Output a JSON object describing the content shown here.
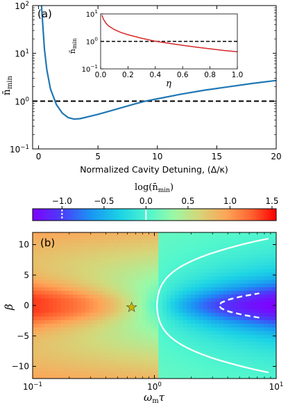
{
  "chart_data": [
    {
      "panel": "(a)",
      "type": "line",
      "xlabel": "Normalized Cavity Detuning, (Δ/κ)",
      "ylabel": "n̄min",
      "yscale": "log",
      "xlim": [
        -0.5,
        20
      ],
      "ylim": [
        0.1,
        100
      ],
      "xticks": [
        "0",
        "5",
        "10",
        "15",
        "20"
      ],
      "yticks": [
        "10⁻¹",
        "10⁰",
        "10¹",
        "10²"
      ],
      "series": [
        {
          "color": "#1f77b4",
          "x": [
            0.25,
            0.35,
            0.5,
            0.7,
            1.0,
            1.5,
            2.0,
            2.5,
            3.0,
            3.5,
            4.0,
            5.0,
            6.0,
            7.0,
            8.0,
            9.0,
            10.0,
            12.0,
            14.0,
            16.0,
            18.0,
            20.0
          ],
          "y": [
            100,
            40,
            12,
            4.5,
            1.8,
            0.85,
            0.56,
            0.45,
            0.42,
            0.43,
            0.46,
            0.53,
            0.62,
            0.73,
            0.86,
            1.0,
            1.12,
            1.4,
            1.7,
            2.0,
            2.35,
            2.7
          ]
        }
      ],
      "reference_line": {
        "y": 1,
        "style": "dashed",
        "color": "#000000"
      },
      "inset": {
        "type": "line",
        "xlabel": "η",
        "ylabel": "n̄min",
        "yscale": "log",
        "xlim": [
          0,
          1
        ],
        "ylim": [
          0.1,
          10
        ],
        "xticks": [
          "0.0",
          "0.2",
          "0.4",
          "0.6",
          "0.8",
          "1.0"
        ],
        "yticks": [
          "10⁻¹",
          "10⁰",
          "10¹"
        ],
        "series": [
          {
            "color": "#d62728",
            "x": [
              0.01,
              0.02,
              0.04,
              0.06,
              0.1,
              0.15,
              0.2,
              0.3,
              0.4,
              0.5,
              0.6,
              0.7,
              0.8,
              0.9,
              1.0
            ],
            "y": [
              9,
              6.5,
              4.5,
              3.6,
              2.7,
              2.1,
              1.75,
              1.3,
              1.02,
              0.85,
              0.72,
              0.62,
              0.54,
              0.47,
              0.42
            ]
          }
        ],
        "reference_line": {
          "y": 1,
          "style": "dashed",
          "color": "#000000"
        }
      }
    },
    {
      "panel": "(b)",
      "type": "heatmap",
      "xlabel": "ωmτ",
      "ylabel": "β",
      "xscale": "log",
      "xlim": [
        0.1,
        10
      ],
      "ylim": [
        -12,
        12
      ],
      "xticks": [
        "10⁻¹",
        "10⁰",
        "10¹"
      ],
      "yticks": [
        "−10",
        "−5",
        "0",
        "5",
        "10"
      ],
      "colorbar": {
        "label": "log(n̄min)",
        "range": [
          -1.35,
          1.55
        ],
        "ticks": [
          "−1.0",
          "−0.5",
          "0.0",
          "0.5",
          "1.0",
          "1.5"
        ],
        "colormap": "rainbow",
        "markers": [
          {
            "value": -1.0,
            "style": "dashed",
            "color": "#ffffff"
          },
          {
            "value": 0.0,
            "style": "solid",
            "color": "#ffffff"
          }
        ]
      },
      "contours": [
        {
          "level": 0.0,
          "style": "solid",
          "color": "#ffffff"
        },
        {
          "level": -1.0,
          "style": "dashed",
          "color": "#ffffff"
        }
      ],
      "star": {
        "x": 0.65,
        "y": -0.3,
        "color": "#c8b400"
      }
    }
  ],
  "labels": {
    "panel_a": "(a)",
    "panel_b": "(b)",
    "xlabel_a": "Normalized Cavity Detuning, (Δ/κ)",
    "colorbar_label": "log(n̄min)",
    "xlabel_b_main": "ωmτ",
    "ylabel_b": "β",
    "inset_xlabel": "η"
  }
}
